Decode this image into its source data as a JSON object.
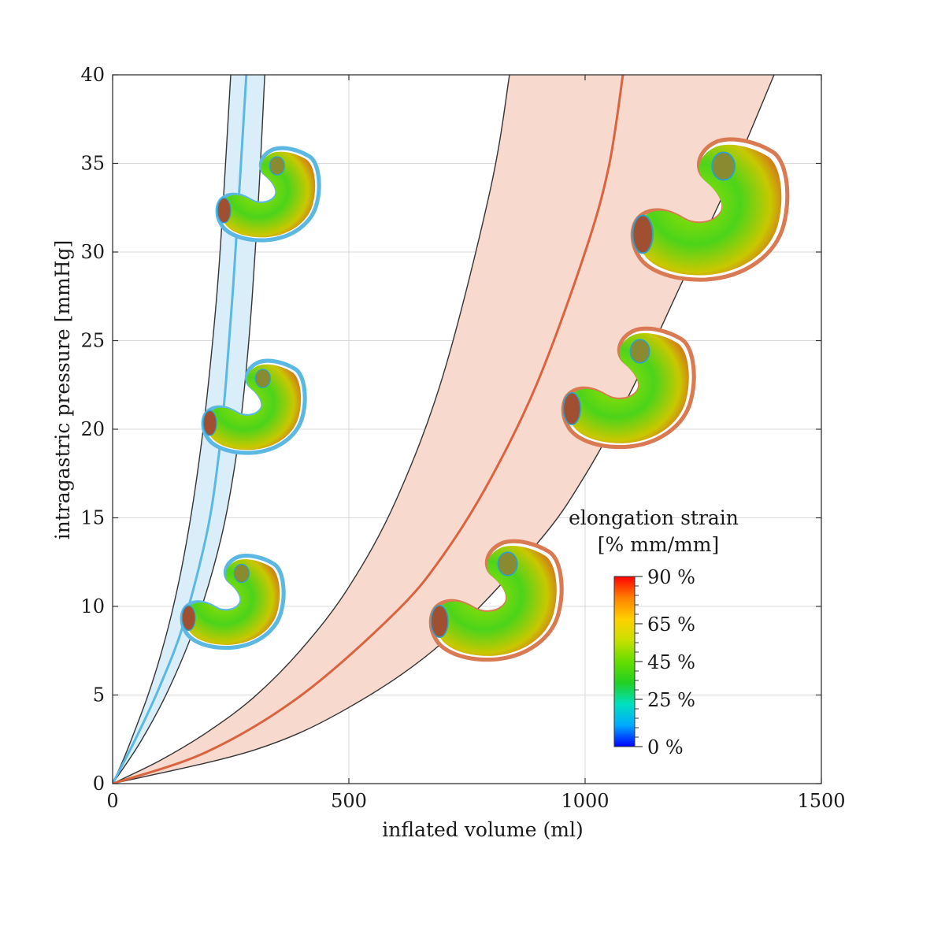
{
  "chart_data": {
    "type": "line",
    "title": "",
    "xlabel": "inflated volume (ml)",
    "ylabel": "intragastric pressure [mmHg]",
    "xlim": [
      0,
      1500
    ],
    "ylim": [
      0,
      40
    ],
    "x_ticks": [
      "0",
      "500",
      "1000",
      "1500"
    ],
    "y_ticks": [
      "0",
      "5",
      "10",
      "15",
      "20",
      "25",
      "30",
      "35",
      "40"
    ],
    "grid": true,
    "series": [
      {
        "band_color": "#d9eef9",
        "mean_color": "#5bb8e3",
        "bound_color": "#333333",
        "upper": [
          [
            0,
            0
          ],
          [
            25,
            1.5
          ],
          [
            50,
            3.2
          ],
          [
            75,
            5.0
          ],
          [
            100,
            7.1
          ],
          [
            125,
            9.6
          ],
          [
            150,
            12.7
          ],
          [
            175,
            16.7
          ],
          [
            200,
            21.9
          ],
          [
            225,
            29.1
          ],
          [
            250,
            40
          ]
        ],
        "mean": [
          [
            0,
            0
          ],
          [
            50,
            2.6
          ],
          [
            100,
            5.5
          ],
          [
            150,
            9.0
          ],
          [
            200,
            14.2
          ],
          [
            225,
            18.6
          ],
          [
            240,
            22.7
          ],
          [
            255,
            28.0
          ],
          [
            270,
            34.3
          ],
          [
            283,
            40
          ]
        ],
        "lower": [
          [
            0,
            0
          ],
          [
            60,
            2.4
          ],
          [
            120,
            5.4
          ],
          [
            180,
            9.3
          ],
          [
            230,
            13.9
          ],
          [
            260,
            18.2
          ],
          [
            280,
            22.6
          ],
          [
            295,
            27.3
          ],
          [
            310,
            33.6
          ],
          [
            322,
            40
          ]
        ]
      },
      {
        "band_color": "#f7d9ce",
        "mean_color": "#d9643f",
        "bound_color": "#333333",
        "upper": [
          [
            0,
            0
          ],
          [
            100,
            1.3
          ],
          [
            200,
            2.9
          ],
          [
            300,
            4.9
          ],
          [
            400,
            7.6
          ],
          [
            500,
            11.1
          ],
          [
            600,
            16.0
          ],
          [
            700,
            23.1
          ],
          [
            800,
            33.6
          ],
          [
            840,
            40
          ]
        ],
        "mean": [
          [
            0,
            0
          ],
          [
            200,
            1.8
          ],
          [
            400,
            5.0
          ],
          [
            600,
            9.7
          ],
          [
            700,
            12.9
          ],
          [
            800,
            17.2
          ],
          [
            900,
            22.7
          ],
          [
            1000,
            30.0
          ],
          [
            1050,
            34.8
          ],
          [
            1080,
            40
          ]
        ],
        "lower": [
          [
            0,
            0
          ],
          [
            300,
            1.9
          ],
          [
            500,
            4.3
          ],
          [
            700,
            8.0
          ],
          [
            900,
            13.6
          ],
          [
            1000,
            17.4
          ],
          [
            1100,
            22.3
          ],
          [
            1200,
            28.0
          ],
          [
            1300,
            33.7
          ],
          [
            1400,
            40
          ]
        ]
      }
    ],
    "colorbar": {
      "title_line1": "elongation strain",
      "title_line2": "[% mm/mm]",
      "labels": [
        "90 %",
        "65 %",
        "45 %",
        "25 %",
        "0 %"
      ],
      "label_values": [
        90,
        65,
        45,
        25,
        0
      ],
      "range": [
        0,
        90
      ],
      "colors": [
        "#0000ff",
        "#00aaff",
        "#00e0c0",
        "#22d022",
        "#66dd00",
        "#c8e000",
        "#ffd000",
        "#ff8000",
        "#ff0000"
      ]
    },
    "stomach_insets": [
      {
        "group": "blue",
        "x": 320,
        "y": 33
      },
      {
        "group": "blue",
        "x": 290,
        "y": 21
      },
      {
        "group": "blue",
        "x": 245,
        "y": 10
      },
      {
        "group": "orange",
        "x": 1250,
        "y": 32
      },
      {
        "group": "orange",
        "x": 1080,
        "y": 22
      },
      {
        "group": "orange",
        "x": 800,
        "y": 10
      }
    ]
  }
}
